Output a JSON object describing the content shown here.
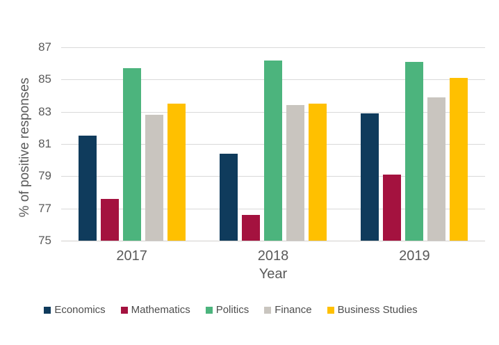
{
  "page": {
    "background": "#FFFFFF"
  },
  "chart_data": {
    "type": "bar",
    "title": "",
    "categories": [
      "2017",
      "2018",
      "2019"
    ],
    "series": [
      {
        "name": "Economics",
        "color": "#0F3B5C",
        "values": [
          81.5,
          80.4,
          82.9
        ]
      },
      {
        "name": "Mathematics",
        "color": "#A4123F",
        "values": [
          77.6,
          76.6,
          79.1
        ]
      },
      {
        "name": "Politics",
        "color": "#4CB47D",
        "values": [
          85.7,
          86.2,
          86.1
        ]
      },
      {
        "name": "Finance",
        "color": "#C9C5BF",
        "values": [
          82.8,
          83.4,
          83.9
        ]
      },
      {
        "name": "Business Studies",
        "color": "#FFC000",
        "values": [
          83.5,
          83.5,
          85.1
        ]
      }
    ],
    "xlabel": "Year",
    "ylabel": "% of positive responses",
    "ylim": [
      75,
      87
    ],
    "yticks": [
      75,
      77,
      79,
      81,
      83,
      85,
      87
    ],
    "grid": true,
    "legend_position": "bottom"
  },
  "styles": {
    "gridline_color": "#D9D9D9",
    "axis_line_color": "#D2D0CE",
    "tick_text_color": "#595959",
    "legend_text_color": "#4D4D4D"
  }
}
